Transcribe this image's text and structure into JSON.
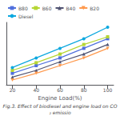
{
  "chart_data": {
    "type": "line",
    "x": [
      20,
      40,
      60,
      80,
      100
    ],
    "series": [
      {
        "name": "B80",
        "values": [
          4.2,
          5.0,
          5.8,
          6.8,
          7.8
        ],
        "marker": "square"
      },
      {
        "name": "B60",
        "values": [
          4.5,
          5.3,
          6.2,
          7.2,
          8.0
        ],
        "marker": "square"
      },
      {
        "name": "B40",
        "values": [
          3.8,
          4.5,
          5.4,
          6.2,
          7.2
        ],
        "marker": "triangle-up"
      },
      {
        "name": "B20",
        "values": [
          3.5,
          4.2,
          5.0,
          5.8,
          6.8
        ],
        "marker": "triangle-down"
      },
      {
        "name": "Diesel",
        "values": [
          4.8,
          5.8,
          6.8,
          7.8,
          9.0
        ],
        "marker": "circle"
      }
    ],
    "xlabel": "Engine Load(%)",
    "caption": "Fig.3. Effect of biodiesel and engine load on CO₂ emissio",
    "xlim": [
      15,
      105
    ],
    "ylim": [
      3.0,
      9.5
    ],
    "xticks": [
      20,
      40,
      60,
      80,
      100
    ],
    "legend": "upper left",
    "tick_labels": "x",
    "grid": false
  }
}
